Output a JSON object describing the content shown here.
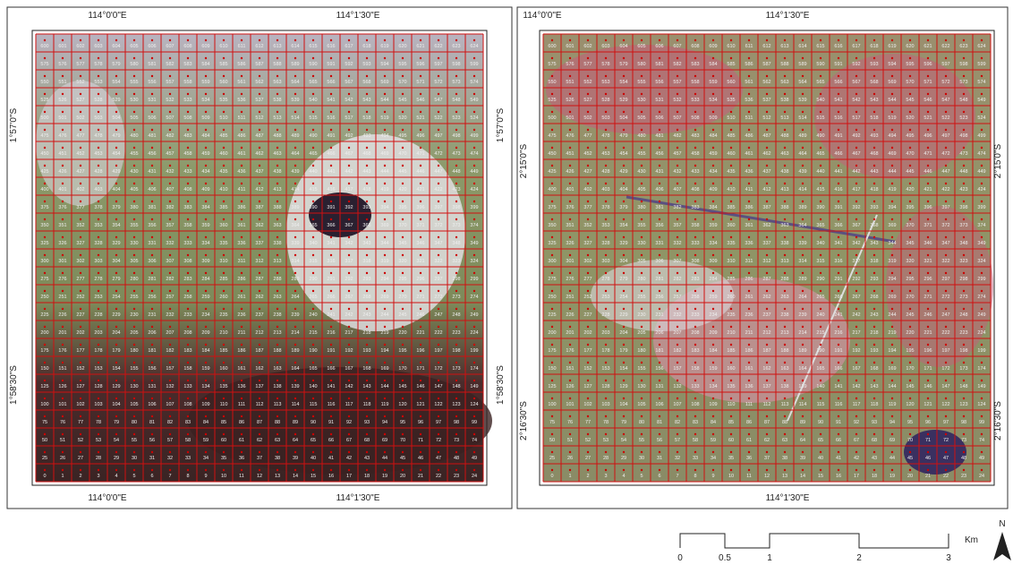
{
  "left_panel": {
    "top_labels": [
      "114°0'0\"E",
      "114°1'30\"E"
    ],
    "bottom_labels": [
      "114°0'0\"E",
      "114°1'30\"E"
    ],
    "left_labels": [
      "1°57'0\"S",
      "1°58'30\"S"
    ],
    "right_labels": [
      "1°57'0\"S",
      "1°58'30\"S"
    ]
  },
  "right_panel": {
    "top_labels": [
      "114°0'0\"E",
      "114°1'30\"E"
    ],
    "bottom_labels": [
      "114°1'30\"E"
    ],
    "left_labels": [
      "2°15'0\"S",
      "2°16'30\"S"
    ],
    "right_labels": [
      "2°15'0\"S",
      "2°16'30\"S"
    ]
  },
  "scale_bar": {
    "labels": [
      "0",
      "0.5",
      "1",
      "2",
      "3"
    ],
    "unit": "Km"
  },
  "north_arrow": "N",
  "cell_numbers": [
    0,
    1,
    2,
    3,
    4,
    5,
    6,
    7,
    8,
    9,
    10,
    11,
    12,
    13,
    14,
    15,
    16,
    17,
    18,
    19,
    20,
    21,
    22,
    23,
    24,
    25,
    26,
    27,
    28,
    29,
    30,
    31,
    32,
    33,
    34,
    35,
    36,
    37,
    38,
    39,
    40,
    41,
    42,
    43,
    44,
    45,
    46,
    47,
    48,
    49,
    50,
    51,
    52,
    53,
    54,
    55,
    56,
    57,
    58,
    59,
    60,
    61,
    62,
    63,
    64,
    65,
    66,
    67,
    68,
    69,
    70,
    71,
    72,
    73,
    74,
    75,
    76,
    77,
    78,
    79,
    80,
    81,
    82,
    83,
    84,
    85,
    86,
    87,
    88,
    89,
    90,
    91,
    92,
    93,
    94,
    95,
    96,
    97,
    98,
    99,
    100,
    101,
    102,
    103,
    104,
    105,
    106,
    107,
    108,
    109,
    110,
    111,
    112,
    113,
    114,
    115,
    116,
    117,
    118,
    119,
    120,
    121,
    122,
    123,
    124,
    125,
    126,
    127,
    128,
    129,
    130,
    131,
    132,
    133,
    134,
    135,
    136,
    137,
    138,
    139,
    140,
    141,
    142,
    143,
    144,
    145,
    146,
    147,
    148,
    149,
    150,
    151,
    152,
    153,
    154,
    155,
    156,
    157,
    158,
    159,
    160,
    161,
    162,
    163,
    164,
    165,
    166,
    167,
    168,
    169,
    170,
    171,
    172,
    173,
    174,
    175,
    176,
    177,
    178,
    179,
    180,
    181,
    182,
    183,
    184,
    185,
    186,
    187,
    188,
    189,
    190,
    191,
    192,
    193,
    194,
    195,
    196,
    197,
    198,
    199,
    200,
    201,
    202,
    203,
    204,
    205,
    206,
    207,
    208,
    209,
    210,
    211,
    212,
    213,
    214,
    215,
    216,
    217,
    218,
    219,
    220,
    221,
    222,
    223,
    224,
    225,
    226,
    227,
    228,
    229,
    230,
    231,
    232,
    233,
    234,
    235,
    236,
    237,
    238,
    239,
    240,
    241,
    242,
    243,
    244,
    245,
    246,
    247,
    248,
    249,
    250,
    251,
    252,
    253,
    254,
    255,
    256,
    257,
    258,
    259,
    260,
    261,
    262,
    263,
    264,
    265,
    266,
    267,
    268,
    269,
    270,
    271,
    272,
    273,
    274,
    275,
    276,
    277,
    278,
    279,
    280,
    281,
    282,
    283,
    284,
    285,
    286,
    287,
    288,
    289,
    290,
    291,
    292,
    293,
    294,
    295,
    296,
    297,
    298,
    299,
    300,
    301,
    302,
    303,
    304,
    305,
    306,
    307,
    308,
    309,
    310,
    311,
    312,
    313,
    314,
    315,
    316,
    317,
    318,
    319,
    320,
    321,
    322,
    323,
    324,
    325,
    326,
    327,
    328,
    329,
    330,
    331,
    332,
    333,
    334,
    335,
    336,
    337,
    338,
    339,
    340,
    341,
    342,
    343,
    344,
    345,
    346,
    347,
    348,
    349,
    350,
    351,
    352,
    353,
    354,
    355,
    356,
    357,
    358,
    359,
    360,
    361,
    362,
    363,
    364,
    365,
    366,
    367,
    368,
    369,
    370,
    371,
    372,
    373,
    374,
    375,
    376,
    377,
    378,
    379,
    380,
    381,
    382,
    383,
    384,
    385,
    386,
    387,
    388,
    389,
    390,
    391,
    392,
    393,
    394,
    395,
    396,
    397,
    398,
    399,
    400,
    401,
    402,
    403,
    404,
    405,
    406,
    407,
    408,
    409,
    410,
    411,
    412,
    413,
    414,
    415,
    416,
    417,
    418,
    419,
    420,
    421,
    422,
    423,
    424,
    425,
    426,
    427,
    428,
    429,
    430,
    431,
    432,
    433,
    434,
    435,
    436,
    437,
    438,
    439,
    440,
    441,
    442,
    443,
    444,
    445,
    446,
    447,
    448,
    449,
    450,
    451,
    452,
    453,
    454,
    455,
    456,
    457,
    458,
    459,
    460,
    461,
    462,
    463,
    464,
    465,
    466,
    467,
    468,
    469,
    470,
    471,
    472,
    473,
    474,
    475,
    476,
    477,
    478,
    479,
    480,
    481,
    482,
    483,
    484,
    485,
    486,
    487,
    488,
    489,
    490,
    491,
    492,
    493,
    494,
    495,
    496,
    497,
    498,
    499,
    500,
    501,
    502,
    503,
    504,
    505,
    506,
    507,
    508,
    509,
    510,
    511,
    512,
    513,
    514,
    515,
    516,
    517,
    518,
    519,
    520,
    521,
    522,
    523,
    524,
    525,
    526,
    527,
    528,
    529,
    530,
    531,
    532,
    533,
    534,
    535,
    536,
    537,
    538,
    539,
    540,
    541,
    542,
    543,
    544,
    545,
    546,
    547,
    548,
    549,
    550,
    551,
    552,
    553,
    554,
    555,
    556,
    557,
    558,
    559,
    560,
    561,
    562,
    563,
    564,
    565,
    566,
    567,
    568,
    569,
    570,
    571,
    572,
    573,
    574,
    575,
    576,
    577,
    578,
    579,
    580,
    581,
    582,
    583,
    584,
    585,
    586,
    587,
    588,
    589,
    590,
    591,
    592,
    593,
    594,
    595,
    596,
    597,
    598,
    599,
    600,
    601,
    602,
    603,
    604,
    605,
    606,
    607,
    608,
    609,
    610,
    611,
    612,
    613,
    614,
    615,
    616,
    617,
    618,
    619,
    620,
    621,
    622,
    623,
    624
  ]
}
